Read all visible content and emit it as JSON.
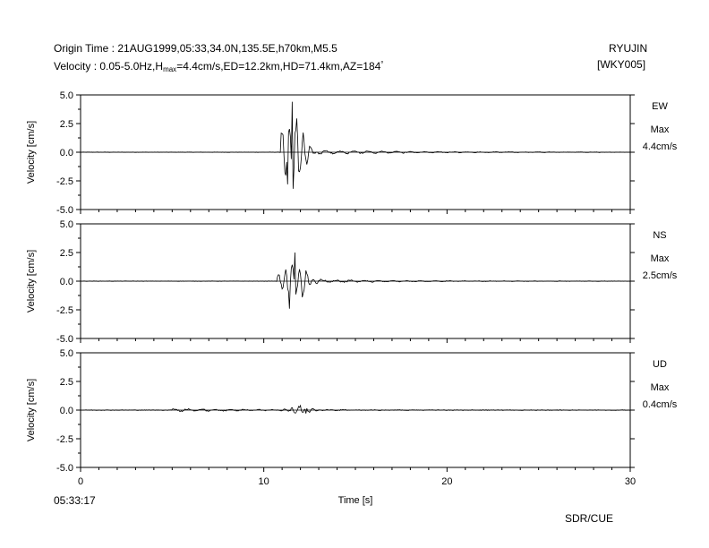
{
  "header": {
    "origin_label": "Origin Time :",
    "origin_value": "21AUG1999,05:33,34.0N,135.5E,h70km,M5.5",
    "velocity_prefix": "Velocity : 0.05-5.0Hz,H",
    "velocity_sub": "max",
    "velocity_rest": "=4.4cm/s,ED=12.2km,HD=71.4km,AZ=184",
    "velocity_sup": "°",
    "station_name": "RYUJIN",
    "station_code": "[WKY005]"
  },
  "footer": {
    "start_time": "05:33:17",
    "credit": "SDR/CUE"
  },
  "chart_data": {
    "type": "line",
    "xlabel": "Time [s]",
    "xlim": [
      0,
      30
    ],
    "x_ticks": [
      0,
      10,
      20,
      30
    ],
    "ylabel": "Velocity [cm/s]",
    "ylim": [
      -5.0,
      5.0
    ],
    "y_ticks": [
      "5.0",
      "2.5",
      "0.0",
      "-2.5",
      "-5.0"
    ],
    "sample_interval_s": 0.05,
    "panels": [
      {
        "component": "EW",
        "max_label": "Max",
        "max_value": "4.4cm/s",
        "series": {
          "name": "EW",
          "onset": 10.9,
          "peak_time": 11.55,
          "peak": 4.4,
          "trough_time": 11.3,
          "trough": -2.8,
          "coda": 0.25,
          "noise": 0.02
        }
      },
      {
        "component": "NS",
        "max_label": "Max",
        "max_value": "2.5cm/s",
        "series": {
          "name": "NS",
          "onset": 10.7,
          "peak_time": 11.7,
          "peak": 2.5,
          "trough_time": 11.4,
          "trough": -2.4,
          "coda": 0.18,
          "noise": 0.02
        }
      },
      {
        "component": "UD",
        "max_label": "Max",
        "max_value": "0.4cm/s",
        "series": {
          "name": "UD",
          "onset": 4.9,
          "peak_time": 12.0,
          "peak": 0.4,
          "trough_time": 12.3,
          "trough": -0.3,
          "coda": 0.12,
          "noise": 0.03
        }
      }
    ]
  }
}
